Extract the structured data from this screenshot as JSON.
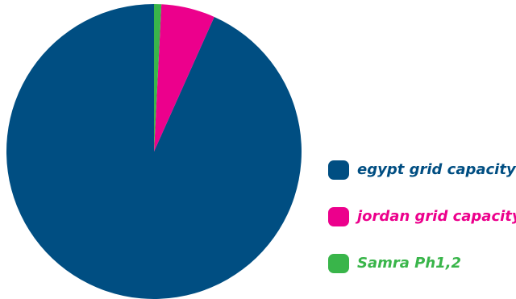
{
  "chart_data": {
    "type": "pie",
    "title": "",
    "start": "top, clockwise",
    "categories": [
      "egypt grid capacity",
      "jordan grid capacity",
      "Samra Ph1,2"
    ],
    "values": [
      93.3,
      5.9,
      0.8
    ],
    "colors": [
      "#004e82",
      "#ec008c",
      "#39b54a"
    ],
    "legend": "right",
    "grid": false
  },
  "legend": {
    "items": [
      {
        "label": "egypt grid capacity",
        "color": "#004e82"
      },
      {
        "label": "jordan grid capacity",
        "color": "#ec008c"
      },
      {
        "label": "Samra Ph1,2",
        "color": "#39b54a"
      }
    ]
  }
}
